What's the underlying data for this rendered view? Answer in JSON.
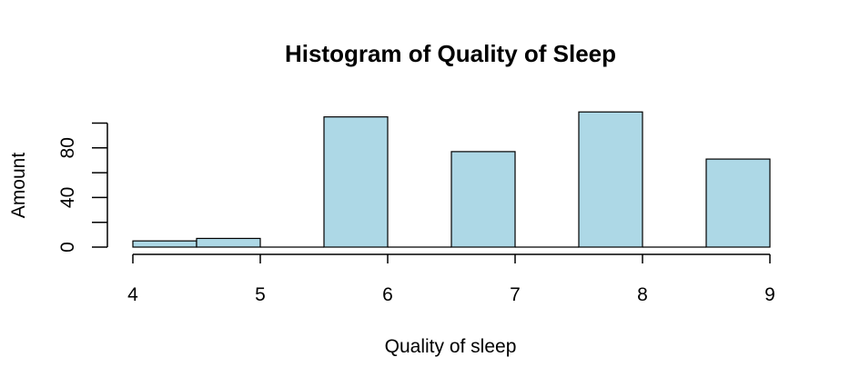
{
  "chart_data": {
    "type": "bar",
    "title": "Histogram of Quality of Sleep",
    "xlabel": "Quality of sleep",
    "ylabel": "Amount",
    "bins": [
      {
        "start": 4.0,
        "end": 4.5,
        "count": 5
      },
      {
        "start": 4.5,
        "end": 5.0,
        "count": 7
      },
      {
        "start": 5.0,
        "end": 5.5,
        "count": 0
      },
      {
        "start": 5.5,
        "end": 6.0,
        "count": 105
      },
      {
        "start": 6.0,
        "end": 6.5,
        "count": 0
      },
      {
        "start": 6.5,
        "end": 7.0,
        "count": 77
      },
      {
        "start": 7.0,
        "end": 7.5,
        "count": 0
      },
      {
        "start": 7.5,
        "end": 8.0,
        "count": 109
      },
      {
        "start": 8.0,
        "end": 8.5,
        "count": 0
      },
      {
        "start": 8.5,
        "end": 9.0,
        "count": 71
      }
    ],
    "xlim": [
      4,
      9
    ],
    "ylim": [
      0,
      100
    ],
    "x_ticks": [
      "4",
      "5",
      "6",
      "7",
      "8",
      "9"
    ],
    "y_ticks": [
      "0",
      "40",
      "80"
    ],
    "y_minor_ticks": [
      20,
      60,
      100
    ],
    "bar_color": "#add8e6",
    "grid": false
  }
}
